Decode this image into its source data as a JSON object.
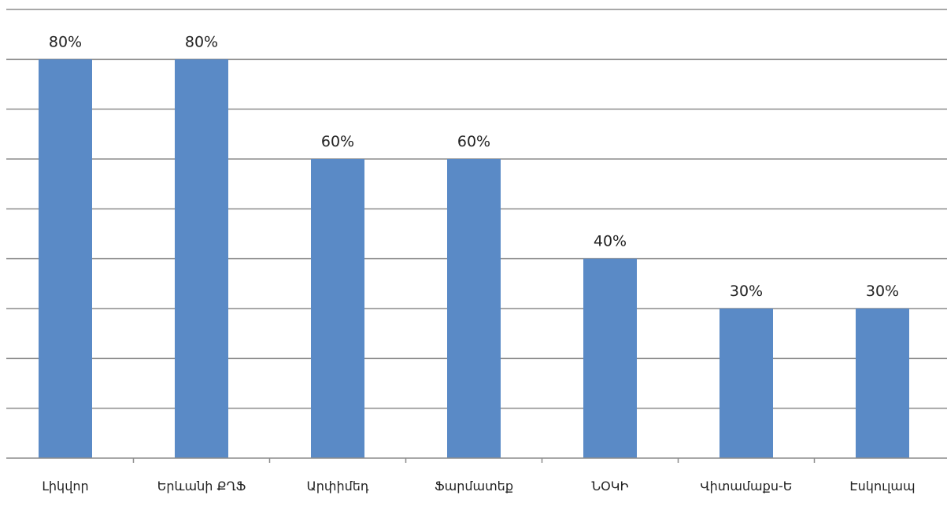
{
  "chart_data": {
    "type": "bar",
    "categories": [
      "Լիկվոր",
      "Երևանի ՔՂՖ",
      "Արփիմեդ",
      "Ֆարմատեք",
      "ՆՕԿԻ",
      "Վիտամաքս-Ե",
      "Էսկուլապ"
    ],
    "values": [
      80,
      80,
      60,
      60,
      40,
      30,
      30
    ],
    "data_labels": [
      "80%",
      "80%",
      "60%",
      "60%",
      "40%",
      "30%",
      "30%"
    ],
    "ylim": [
      0,
      90
    ],
    "grid": true,
    "legend": "none",
    "bar_color": "#5a8ac6",
    "grid_color": "#8c8c8c"
  }
}
